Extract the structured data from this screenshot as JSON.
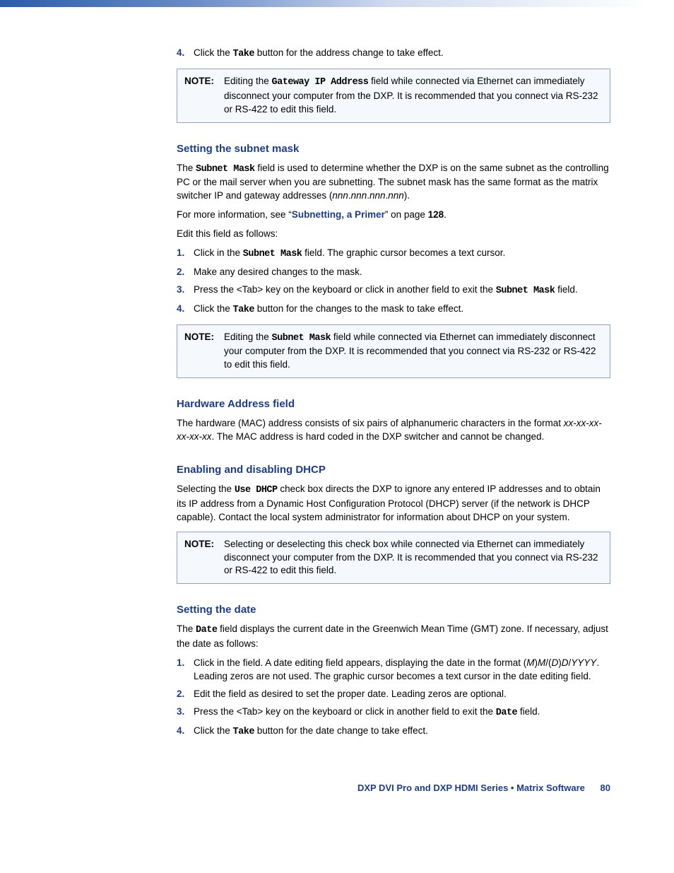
{
  "colors": {
    "heading": "#1b3c8c",
    "note_border": "#8fa4c8",
    "note_bg": "#f5f8fc",
    "text": "#000000",
    "page_bg": "#ffffff",
    "topbar_gradient": [
      "#2a5caa",
      "#6a8cc7",
      "#cfdaef",
      "#ffffff"
    ]
  },
  "typography": {
    "body_font": "Arial, Helvetica, sans-serif",
    "body_size_pt": 10,
    "heading_size_pt": 11,
    "mono_font": "Courier New"
  },
  "top_step": {
    "num": "4.",
    "pre": "Click the ",
    "kw": "Take",
    "post": " button for the address change to take effect."
  },
  "note1": {
    "label": "NOTE:",
    "pre": "Editing the ",
    "kw": "Gateway IP Address",
    "post": " field while connected via Ethernet can immediately disconnect your computer from the DXP. It is recommended that you connect via RS-232 or RS-422 to edit this field."
  },
  "subnet": {
    "heading": "Setting the subnet mask",
    "p1_pre": "The ",
    "p1_kw": "Subnet Mask",
    "p1_mid": " field is used to determine whether the DXP is on the same subnet as the controlling PC or the mail server when you are subnetting. The subnet mask has the same format as the matrix switcher IP and gateway addresses (",
    "p1_it": "nnn",
    "p1_dot": ".",
    "p1_end": ").",
    "p2_pre": "For more information, see “",
    "p2_link": "Subnetting, a Primer",
    "p2_mid": "” on page ",
    "p2_pg": "128",
    "p2_end": ".",
    "p3": "Edit this field as follows:",
    "steps": [
      {
        "num": "1.",
        "pre": "Click in the ",
        "kw": "Subnet Mask",
        "post": " field. The graphic cursor becomes a text cursor."
      },
      {
        "num": "2.",
        "pre": "",
        "kw": "",
        "post": "Make any desired changes to the mask."
      },
      {
        "num": "3.",
        "pre": "Press the <Tab> key on the keyboard or click in another field to exit the ",
        "kw": "Subnet Mask",
        "post": " field."
      },
      {
        "num": "4.",
        "pre": "Click the ",
        "kw": "Take",
        "post": " button for the changes to the mask to take effect."
      }
    ]
  },
  "note2": {
    "label": "NOTE:",
    "pre": "Editing the ",
    "kw": "Subnet Mask",
    "post": " field while connected via Ethernet can immediately disconnect your computer from the DXP. It is recommended that you connect via RS-232 or RS-422 to edit this field."
  },
  "hw": {
    "heading": "Hardware Address field",
    "p_pre": "The hardware (MAC) address consists of six pairs of alphanumeric characters in the format ",
    "p_it": "xx-xx-xx-xx-xx-xx",
    "p_post": ". The MAC address is hard coded in the DXP switcher and cannot be changed."
  },
  "dhcp": {
    "heading": "Enabling and disabling DHCP",
    "p_pre": "Selecting the ",
    "p_kw": "Use DHCP",
    "p_post": " check box directs the DXP to ignore any entered IP addresses and to obtain its IP address from a Dynamic Host Configuration Protocol (DHCP) server (if the network is DHCP capable). Contact the local system administrator for information about DHCP on your system."
  },
  "note3": {
    "label": "NOTE:",
    "text": "Selecting or deselecting this check box while connected via Ethernet can immediately disconnect your computer from the DXP. It is recommended that you connect via RS-232 or RS-422 to edit this field."
  },
  "date": {
    "heading": "Setting the date",
    "p_pre": "The ",
    "p_kw": "Date",
    "p_post": " field displays the current date in the Greenwich Mean Time (GMT) zone. If necessary, adjust the date as follows:",
    "step1": {
      "num": "1.",
      "pre": "Click in the field. A date editing field appears, displaying the date in the format (",
      "m1": "M",
      "m2": ")",
      "m3": "M",
      "m4": "/(",
      "d1": "D",
      "d2": ")",
      "d3": "D",
      "d4": "/",
      "y": "YYYY",
      "post": ". Leading zeros are not used. The graphic cursor becomes a text cursor in the date editing field."
    },
    "step2": {
      "num": "2.",
      "text": "Edit the field as desired to set the proper date. Leading zeros are optional."
    },
    "step3": {
      "num": "3.",
      "pre": "Press the <Tab> key on the keyboard or click in another field to exit the ",
      "kw": "Date",
      "post": " field."
    },
    "step4": {
      "num": "4.",
      "pre": "Click the ",
      "kw": "Take",
      "post": " button for the date change to take effect."
    }
  },
  "footer": {
    "title": "DXP DVI Pro and DXP HDMI Series • Matrix Software",
    "page": "80"
  }
}
